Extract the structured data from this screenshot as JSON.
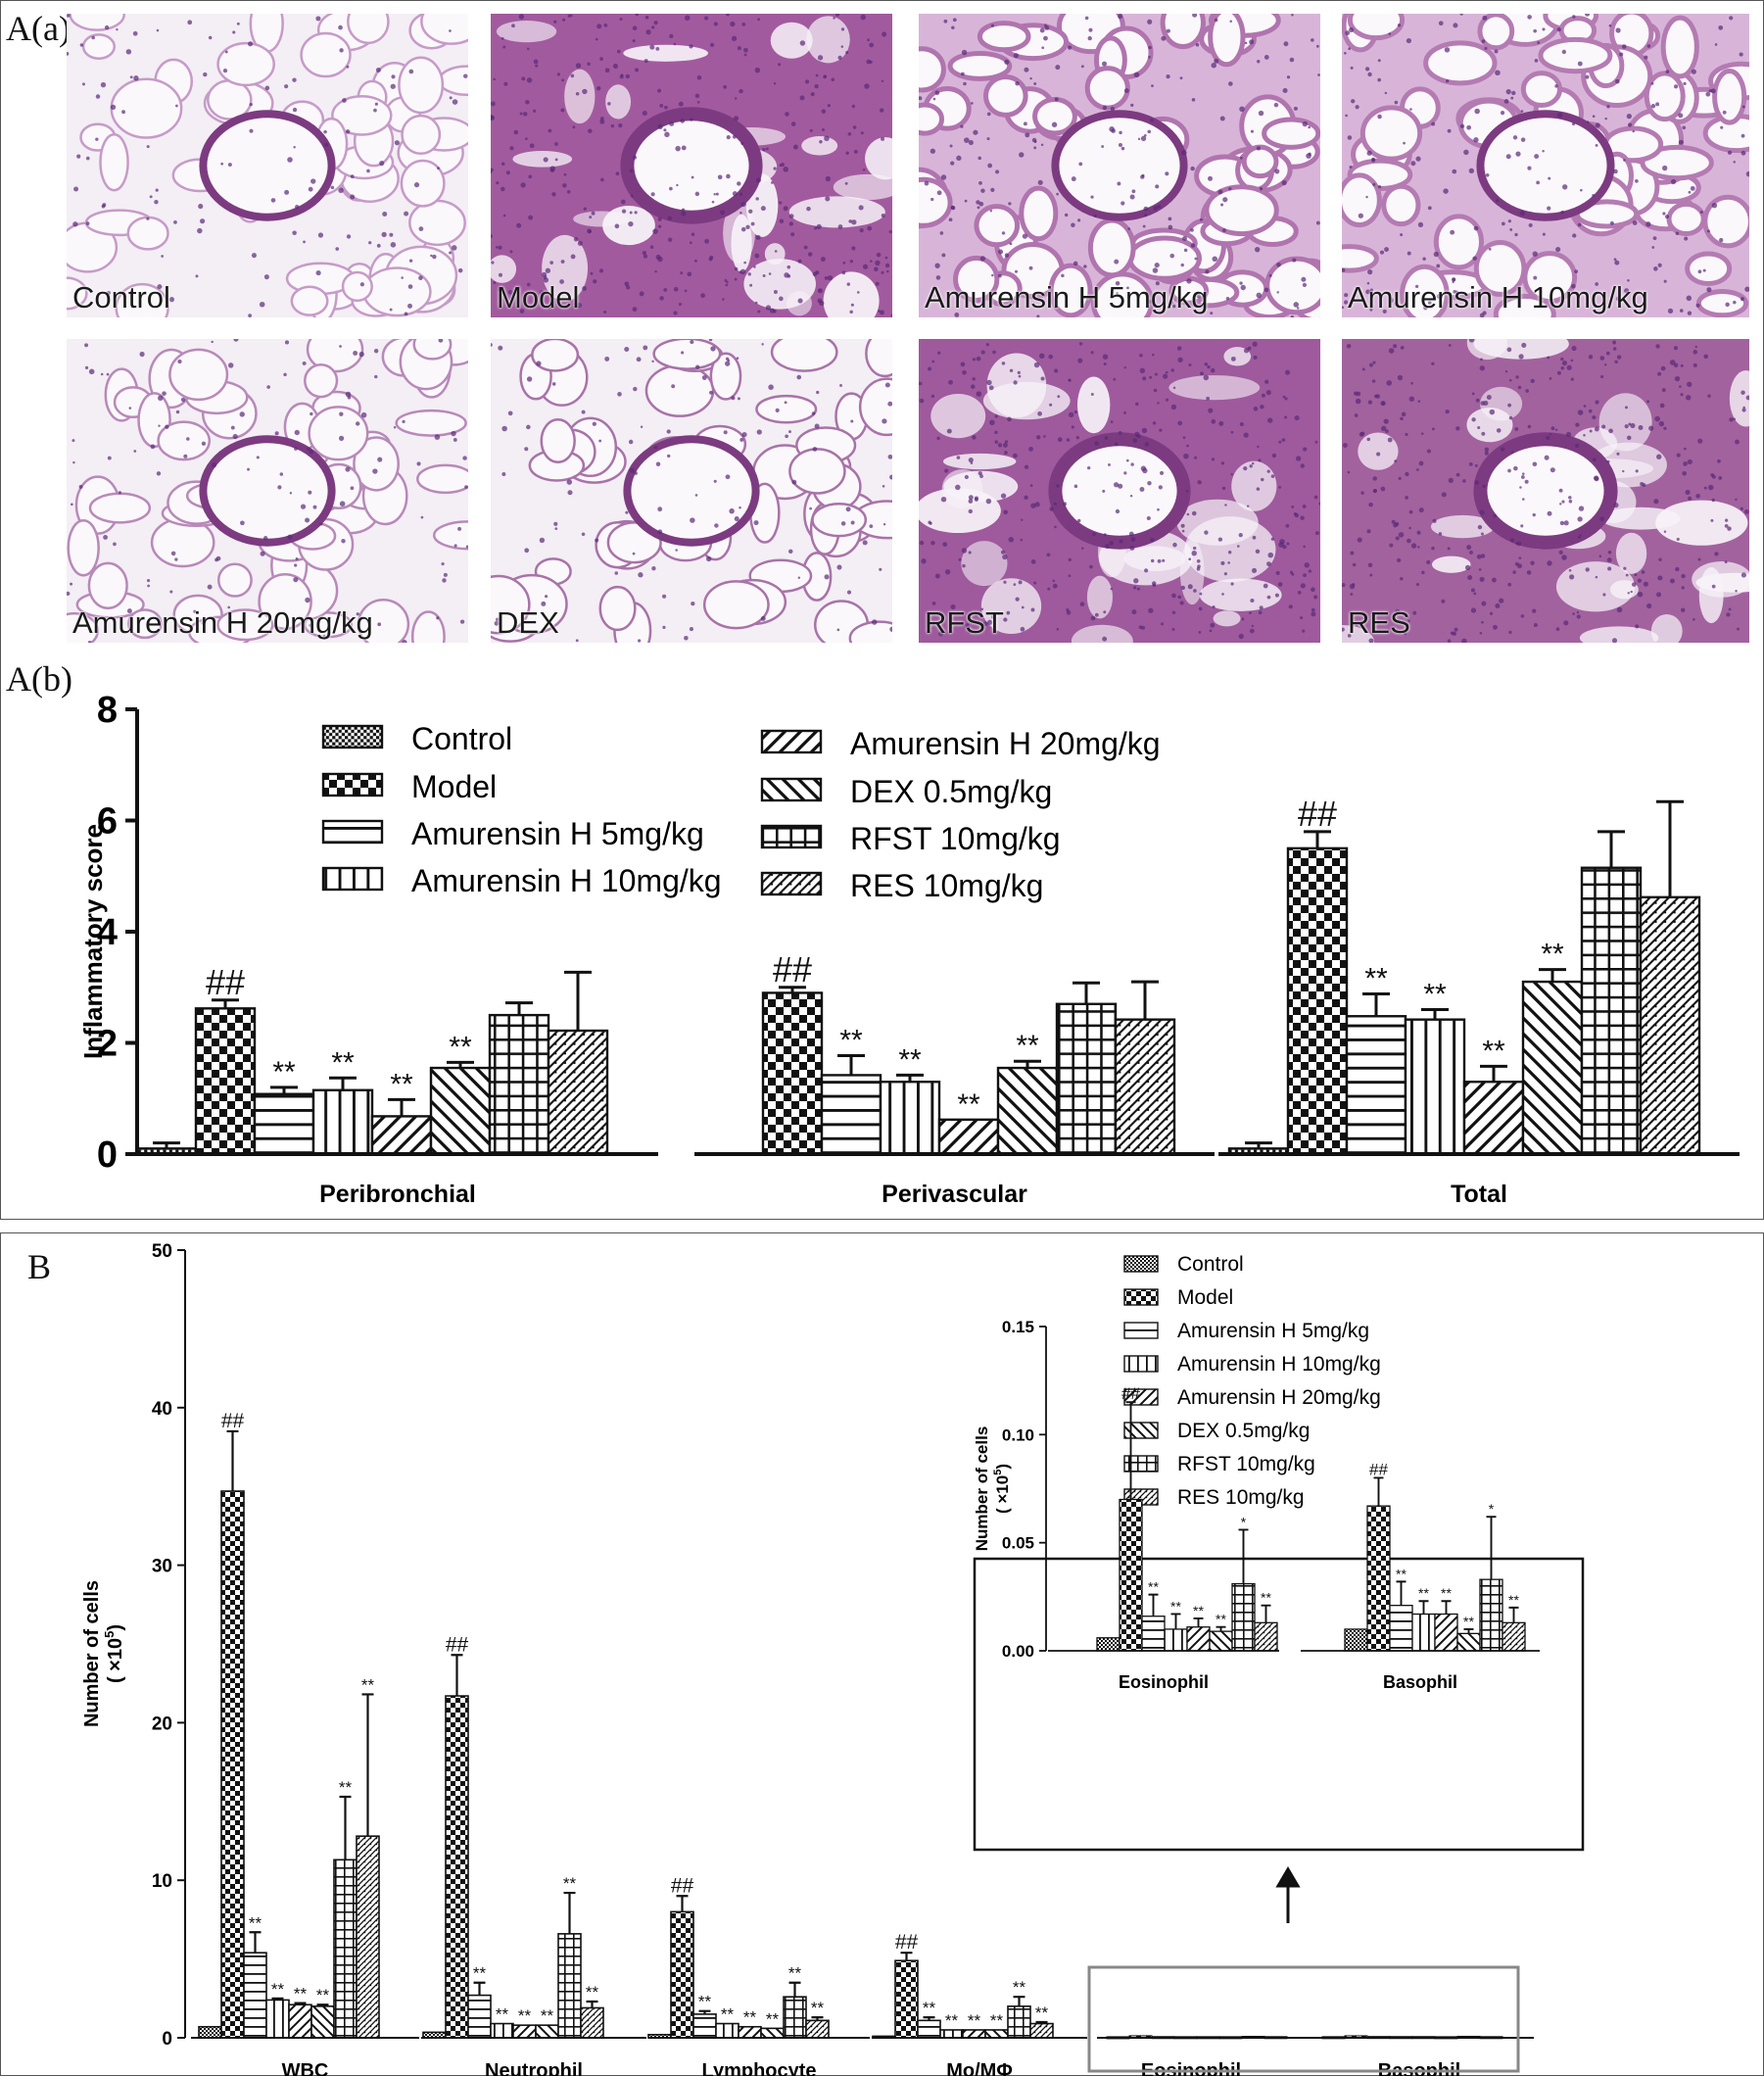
{
  "panel_a": {
    "label_a": "A(a)",
    "label_b": "A(b)",
    "micrographs": [
      {
        "caption": "Control",
        "tissue": "sparse",
        "hue": "#c69bc8"
      },
      {
        "caption": "Model",
        "tissue": "dense",
        "hue": "#a25a9e"
      },
      {
        "caption": "Amurensin H 5mg/kg",
        "tissue": "medium",
        "hue": "#b074ae"
      },
      {
        "caption": "Amurensin H 10mg/kg",
        "tissue": "medium",
        "hue": "#b47bb2"
      },
      {
        "caption": "Amurensin H 20mg/kg",
        "tissue": "sparse",
        "hue": "#b889b9"
      },
      {
        "caption": "DEX",
        "tissue": "sparse",
        "hue": "#a873a8"
      },
      {
        "caption": "RFST",
        "tissue": "dense",
        "hue": "#9e5a9c"
      },
      {
        "caption": "RES",
        "tissue": "dense",
        "hue": "#a2629e"
      }
    ]
  },
  "panel_b_label": "B",
  "chart_data": [
    {
      "type": "bar",
      "id": "inflammatory-score",
      "ylabel": "Inflammatory score",
      "ylim": [
        0,
        8
      ],
      "yticks": [
        0,
        2,
        4,
        6,
        8
      ],
      "grid": false,
      "legend_position": "top",
      "categories": [
        "Peribronchial",
        "Perivascular",
        "Total"
      ],
      "series": [
        {
          "name": "Control",
          "pattern": "fine-check",
          "values": [
            0.1,
            0,
            0.1
          ],
          "errors": [
            0.1,
            0,
            0.1
          ],
          "marks": [
            "",
            "",
            ""
          ]
        },
        {
          "name": "Model",
          "pattern": "coarse-check",
          "values": [
            2.62,
            2.9,
            5.5
          ],
          "errors": [
            0.15,
            0.1,
            0.3
          ],
          "marks": [
            "##",
            "##",
            "##"
          ]
        },
        {
          "name": "Amurensin H 5mg/kg",
          "pattern": "hstripe",
          "values": [
            1.08,
            1.42,
            2.48
          ],
          "errors": [
            0.12,
            0.35,
            0.4
          ],
          "marks": [
            "**",
            "**",
            "**"
          ]
        },
        {
          "name": "Amurensin H 10mg/kg",
          "pattern": "vstripe",
          "values": [
            1.15,
            1.3,
            2.42
          ],
          "errors": [
            0.22,
            0.12,
            0.18
          ],
          "marks": [
            "**",
            "**",
            "**"
          ]
        },
        {
          "name": "Amurensin H 20mg/kg",
          "pattern": "diag-right",
          "values": [
            0.68,
            0.62,
            1.3
          ],
          "errors": [
            0.3,
            0,
            0.28
          ],
          "marks": [
            "**",
            "**",
            "**"
          ]
        },
        {
          "name": "DEX 0.5mg/kg",
          "pattern": "diag-left",
          "values": [
            1.55,
            1.55,
            3.1
          ],
          "errors": [
            0.1,
            0.12,
            0.22
          ],
          "marks": [
            "**",
            "**",
            "**"
          ]
        },
        {
          "name": "RFST 10mg/kg",
          "pattern": "grid",
          "values": [
            2.5,
            2.7,
            5.15
          ],
          "errors": [
            0.22,
            0.38,
            0.65
          ],
          "marks": [
            "",
            "",
            ""
          ]
        },
        {
          "name": "RES 10mg/kg",
          "pattern": "fine-diag",
          "values": [
            2.22,
            2.42,
            4.62
          ],
          "errors": [
            1.05,
            0.68,
            1.72
          ],
          "marks": [
            "",
            "",
            ""
          ]
        }
      ]
    },
    {
      "type": "bar",
      "id": "bal-cell-counts",
      "ylabel": "Number of cells",
      "ylabel_unit_prefix": "( ×10",
      "ylabel_unit_exp": "5",
      "ylabel_unit_suffix": ")",
      "ylim": [
        0,
        50
      ],
      "yticks": [
        0,
        10,
        20,
        30,
        40,
        50
      ],
      "grid": false,
      "legend_position": "top-right",
      "categories": [
        "WBC",
        "Neutrophil",
        "Lymphocyte",
        "Mo/MΦ",
        "Eosinophil",
        "Basophil"
      ],
      "series": [
        {
          "name": "Control",
          "pattern": "fine-check",
          "values": [
            0.7,
            0.35,
            0.2,
            0.1,
            0.006,
            0.01
          ],
          "errors": [
            0,
            0,
            0,
            0,
            0,
            0
          ],
          "marks": [
            "",
            "",
            "",
            "",
            "",
            ""
          ]
        },
        {
          "name": "Model",
          "pattern": "coarse-check",
          "values": [
            34.7,
            21.7,
            8.0,
            4.9,
            0.07,
            0.067
          ],
          "errors": [
            3.8,
            2.6,
            1.0,
            0.5,
            0.045,
            0.013
          ],
          "marks": [
            "##",
            "##",
            "##",
            "##",
            "##",
            "##"
          ]
        },
        {
          "name": "Amurensin H 5mg/kg",
          "pattern": "hstripe",
          "values": [
            5.4,
            2.7,
            1.5,
            1.1,
            0.016,
            0.021
          ],
          "errors": [
            1.3,
            0.8,
            0.2,
            0.2,
            0.01,
            0.011
          ],
          "marks": [
            "**",
            "**",
            "**",
            "**",
            "**",
            "**"
          ]
        },
        {
          "name": "Amurensin H  10mg/kg",
          "pattern": "vstripe",
          "values": [
            2.4,
            0.9,
            0.9,
            0.5,
            0.01,
            0.017
          ],
          "errors": [
            0.1,
            0,
            0,
            0,
            0.007,
            0.006
          ],
          "marks": [
            "**",
            "**",
            "**",
            "**",
            "**",
            "**"
          ]
        },
        {
          "name": "Amurensin H   20mg/kg",
          "pattern": "diag-right",
          "values": [
            2.1,
            0.8,
            0.7,
            0.5,
            0.011,
            0.017
          ],
          "errors": [
            0.1,
            0,
            0,
            0,
            0.004,
            0.006
          ],
          "marks": [
            "**",
            "**",
            "**",
            "**",
            "**",
            "**"
          ]
        },
        {
          "name": "DEX      0.5mg/kg",
          "pattern": "diag-left",
          "values": [
            2.0,
            0.8,
            0.6,
            0.5,
            0.009,
            0.008
          ],
          "errors": [
            0.1,
            0,
            0,
            0,
            0.002,
            0.002
          ],
          "marks": [
            "**",
            "**",
            "**",
            "**",
            "**",
            "**"
          ]
        },
        {
          "name": "RFST    10mg/kg",
          "pattern": "grid",
          "values": [
            11.3,
            6.6,
            2.6,
            2.0,
            0.031,
            0.033
          ],
          "errors": [
            4.0,
            2.6,
            0.9,
            0.6,
            0.025,
            0.029
          ],
          "marks": [
            "**",
            "**",
            "**",
            "**",
            "*",
            "*"
          ]
        },
        {
          "name": "RES      10mg/kg",
          "pattern": "fine-diag",
          "values": [
            12.8,
            1.9,
            1.1,
            0.9,
            0.013,
            0.013
          ],
          "errors": [
            9.0,
            0.4,
            0.2,
            0.1,
            0.008,
            0.007
          ],
          "marks": [
            "**",
            "**",
            "**",
            "**",
            "**",
            "**"
          ]
        }
      ]
    },
    {
      "type": "bar",
      "id": "inset-eosinophil-basophil",
      "ylabel": "Number of cells",
      "ylabel_unit_prefix": "( ×10",
      "ylabel_unit_exp": "5",
      "ylabel_unit_suffix": ")",
      "ylim": [
        0,
        0.15
      ],
      "yticks": [
        "0.00",
        "0.05",
        "0.10",
        "0.15"
      ],
      "grid": false,
      "categories": [
        "Eosinophil",
        "Basophil"
      ]
    }
  ]
}
